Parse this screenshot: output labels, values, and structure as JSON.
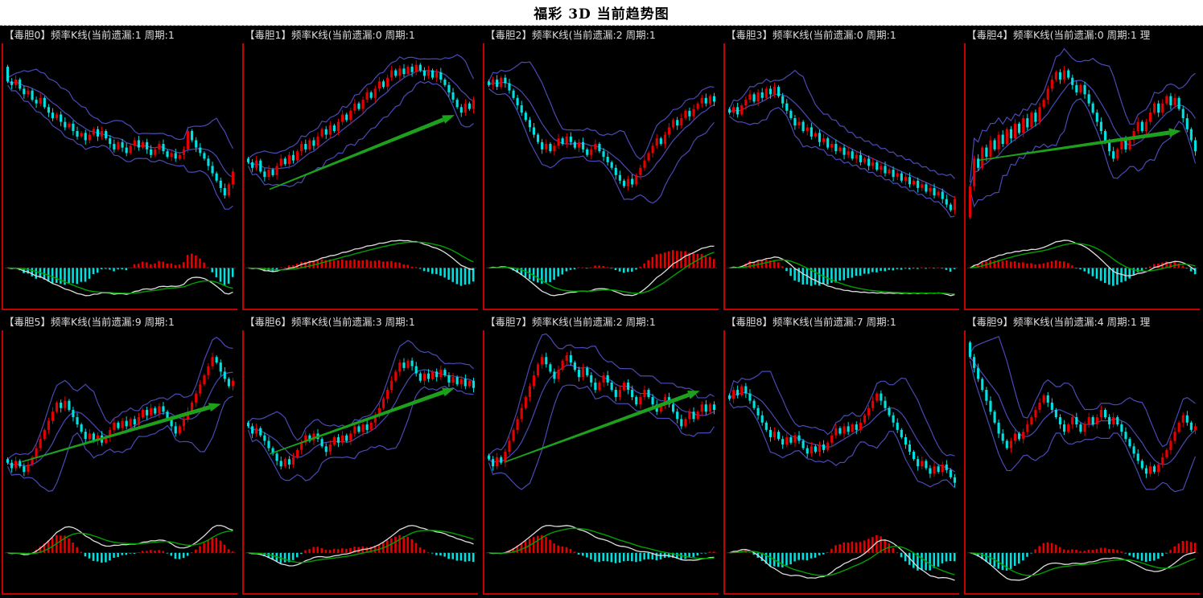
{
  "page_title": "福彩 3D 当前趋势图",
  "colors": {
    "up_candle": "#e60000",
    "down_candle": "#00e1e1",
    "bollinger_band": "#4a4ab8",
    "dif_line": "#dddddd",
    "dea_line": "#00a000",
    "arrow": "#1da11d",
    "zero_line": "#aa0000",
    "frame": "#c40000",
    "panel_background": "#000000",
    "title_text": "#dcdcdc"
  },
  "chart_data": [
    {
      "id": "dudan0",
      "type": "candlestick",
      "title": "【毒胆0】频率K线(当前遗漏:1  周期:1",
      "label": "毒胆0",
      "omission": 1,
      "cycle": 1,
      "indicators": [
        "bollinger",
        "macd"
      ],
      "x_axis_visible": false,
      "y_axis_visible": false,
      "open0": 90,
      "arrow": null,
      "closes": [
        82,
        80,
        83,
        78,
        75,
        77,
        72,
        70,
        73,
        68,
        65,
        62,
        64,
        60,
        57,
        59,
        55,
        52,
        54,
        50,
        53,
        56,
        52,
        55,
        51,
        48,
        45,
        49,
        46,
        43,
        47,
        50,
        46,
        49,
        45,
        42,
        45,
        48,
        44,
        41,
        43,
        40,
        42,
        45,
        55,
        50,
        46,
        43,
        40,
        36,
        32,
        28,
        24,
        20,
        26,
        33
      ]
    },
    {
      "id": "dudan1",
      "type": "candlestick",
      "title": "【毒胆1】频率K线(当前遗漏:0  周期:1",
      "label": "毒胆1",
      "omission": 0,
      "cycle": 1,
      "indicators": [
        "bollinger",
        "macd"
      ],
      "x_axis_visible": false,
      "y_axis_visible": false,
      "open0": null,
      "arrow": [
        11,
        55,
        90,
        27
      ],
      "closes": [
        38,
        35,
        39,
        33,
        30,
        34,
        31,
        36,
        40,
        37,
        42,
        39,
        44,
        48,
        45,
        50,
        47,
        52,
        56,
        53,
        58,
        55,
        60,
        64,
        61,
        66,
        70,
        67,
        72,
        76,
        73,
        78,
        82,
        79,
        84,
        88,
        85,
        89,
        86,
        90,
        87,
        91,
        88,
        85,
        88,
        84,
        87,
        83,
        80,
        76,
        72,
        68,
        65,
        70,
        67,
        72
      ]
    },
    {
      "id": "dudan2",
      "type": "candlestick",
      "title": "【毒胆2】频率K线(当前遗漏:2  周期:1",
      "label": "毒胆2",
      "omission": 2,
      "cycle": 1,
      "indicators": [
        "bollinger",
        "macd"
      ],
      "x_axis_visible": false,
      "y_axis_visible": false,
      "open0": null,
      "arrow": null,
      "closes": [
        80,
        83,
        79,
        84,
        81,
        77,
        73,
        69,
        65,
        61,
        57,
        53,
        49,
        45,
        48,
        44,
        47,
        51,
        48,
        52,
        49,
        46,
        49,
        45,
        42,
        45,
        48,
        44,
        41,
        38,
        35,
        31,
        28,
        25,
        29,
        26,
        31,
        35,
        39,
        43,
        47,
        51,
        48,
        53,
        57,
        61,
        58,
        62,
        66,
        63,
        67,
        70,
        73,
        70,
        74,
        71
      ]
    },
    {
      "id": "dudan3",
      "type": "candlestick",
      "title": "【毒胆3】频率K线(当前遗漏:0  周期:1",
      "label": "毒胆3",
      "omission": 0,
      "cycle": 1,
      "indicators": [
        "bollinger",
        "macd"
      ],
      "x_axis_visible": false,
      "y_axis_visible": false,
      "open0": null,
      "arrow": null,
      "closes": [
        65,
        68,
        64,
        69,
        72,
        75,
        71,
        76,
        73,
        78,
        75,
        79,
        74,
        70,
        66,
        62,
        58,
        60,
        55,
        57,
        52,
        54,
        49,
        51,
        46,
        48,
        44,
        46,
        42,
        44,
        40,
        42,
        38,
        40,
        36,
        38,
        34,
        36,
        32,
        34,
        30,
        32,
        28,
        30,
        26,
        28,
        24,
        26,
        22,
        24,
        20,
        22,
        18,
        15,
        12,
        18
      ]
    },
    {
      "id": "dudan4",
      "type": "candlestick",
      "title": "【毒胆4】频率K线(当前遗漏:0  周期:1  理",
      "label": "毒胆4",
      "omission": 0,
      "cycle": 1,
      "indicators": [
        "bollinger",
        "macd"
      ],
      "x_axis_visible": false,
      "y_axis_visible": false,
      "open0": 8,
      "arrow": [
        6,
        44,
        92,
        33
      ],
      "closes": [
        25,
        40,
        35,
        46,
        41,
        50,
        45,
        53,
        48,
        56,
        51,
        59,
        54,
        62,
        57,
        65,
        60,
        68,
        72,
        78,
        83,
        87,
        83,
        88,
        84,
        80,
        76,
        80,
        75,
        70,
        65,
        60,
        55,
        49,
        44,
        40,
        45,
        50,
        45,
        50,
        55,
        60,
        55,
        60,
        65,
        70,
        65,
        70,
        74,
        69,
        73,
        67,
        62,
        56,
        50,
        44
      ]
    },
    {
      "id": "dudan5",
      "type": "candlestick",
      "title": "【毒胆5】频率K线(当前遗漏:9  周期:1",
      "label": "毒胆5",
      "omission": 9,
      "cycle": 1,
      "indicators": [
        "bollinger",
        "macd"
      ],
      "x_axis_visible": false,
      "y_axis_visible": false,
      "open0": null,
      "arrow": [
        8,
        50,
        93,
        28
      ],
      "closes": [
        30,
        27,
        31,
        28,
        25,
        29,
        33,
        38,
        43,
        48,
        53,
        58,
        63,
        60,
        64,
        59,
        55,
        51,
        47,
        43,
        46,
        42,
        45,
        41,
        44,
        48,
        52,
        49,
        53,
        50,
        54,
        51,
        55,
        59,
        56,
        60,
        57,
        61,
        58,
        54,
        50,
        46,
        50,
        54,
        58,
        63,
        68,
        73,
        78,
        83,
        88,
        85,
        80,
        76,
        72,
        75
      ]
    },
    {
      "id": "dudan6",
      "type": "candlestick",
      "title": "【毒胆6】频率K线(当前遗漏:3  周期:1",
      "label": "毒胆6",
      "omission": 3,
      "cycle": 1,
      "indicators": [
        "bollinger",
        "macd"
      ],
      "x_axis_visible": false,
      "y_axis_visible": false,
      "open0": null,
      "arrow": [
        11,
        47,
        90,
        22
      ],
      "closes": [
        50,
        46,
        49,
        45,
        42,
        38,
        35,
        31,
        28,
        32,
        29,
        33,
        37,
        41,
        45,
        42,
        46,
        43,
        39,
        36,
        40,
        44,
        41,
        45,
        42,
        46,
        50,
        47,
        51,
        48,
        52,
        56,
        60,
        65,
        70,
        75,
        80,
        85,
        82,
        86,
        83,
        79,
        75,
        79,
        76,
        80,
        77,
        81,
        78,
        74,
        77,
        73,
        76,
        72,
        75,
        71
      ]
    },
    {
      "id": "dudan7",
      "type": "candlestick",
      "title": "【毒胆7】频率K线(当前遗漏:2  周期:1",
      "label": "毒胆7",
      "omission": 2,
      "cycle": 1,
      "indicators": [
        "bollinger",
        "macd"
      ],
      "x_axis_visible": false,
      "y_axis_visible": false,
      "open0": null,
      "arrow": [
        9,
        50,
        92,
        23
      ],
      "closes": [
        32,
        28,
        33,
        30,
        36,
        42,
        48,
        54,
        60,
        66,
        72,
        78,
        84,
        88,
        84,
        80,
        76,
        81,
        86,
        89,
        85,
        81,
        77,
        82,
        78,
        74,
        70,
        74,
        78,
        74,
        70,
        66,
        70,
        74,
        70,
        66,
        62,
        66,
        70,
        66,
        62,
        58,
        62,
        66,
        62,
        58,
        54,
        50,
        54,
        58,
        54,
        58,
        62,
        58,
        62,
        59
      ]
    },
    {
      "id": "dudan8",
      "type": "candlestick",
      "title": "【毒胆8】频率K线(当前遗漏:7  周期:1",
      "label": "毒胆8",
      "omission": 7,
      "cycle": 1,
      "indicators": [
        "bollinger",
        "macd"
      ],
      "x_axis_visible": false,
      "y_axis_visible": false,
      "open0": null,
      "arrow": null,
      "closes": [
        65,
        70,
        67,
        72,
        68,
        64,
        60,
        56,
        52,
        48,
        44,
        47,
        43,
        40,
        44,
        41,
        45,
        42,
        38,
        35,
        39,
        36,
        40,
        37,
        41,
        45,
        49,
        46,
        50,
        47,
        51,
        48,
        52,
        56,
        60,
        64,
        68,
        64,
        60,
        56,
        52,
        48,
        44,
        40,
        36,
        32,
        28,
        31,
        27,
        24,
        28,
        25,
        29,
        26,
        22,
        19
      ]
    },
    {
      "id": "dudan9",
      "type": "candlestick",
      "title": "【毒胆9】频率K线(当前遗漏:4  周期:1  理",
      "label": "毒胆9",
      "omission": 4,
      "cycle": 1,
      "indicators": [
        "bollinger",
        "macd"
      ],
      "x_axis_visible": false,
      "y_axis_visible": false,
      "open0": 96,
      "arrow": null,
      "closes": [
        88,
        82,
        76,
        70,
        64,
        58,
        52,
        46,
        42,
        38,
        42,
        46,
        43,
        47,
        51,
        55,
        59,
        63,
        67,
        63,
        59,
        55,
        51,
        47,
        51,
        55,
        51,
        47,
        51,
        55,
        51,
        55,
        59,
        55,
        51,
        55,
        51,
        47,
        43,
        39,
        35,
        31,
        27,
        24,
        28,
        25,
        29,
        33,
        37,
        42,
        47,
        52,
        56,
        52,
        48,
        50
      ]
    }
  ]
}
